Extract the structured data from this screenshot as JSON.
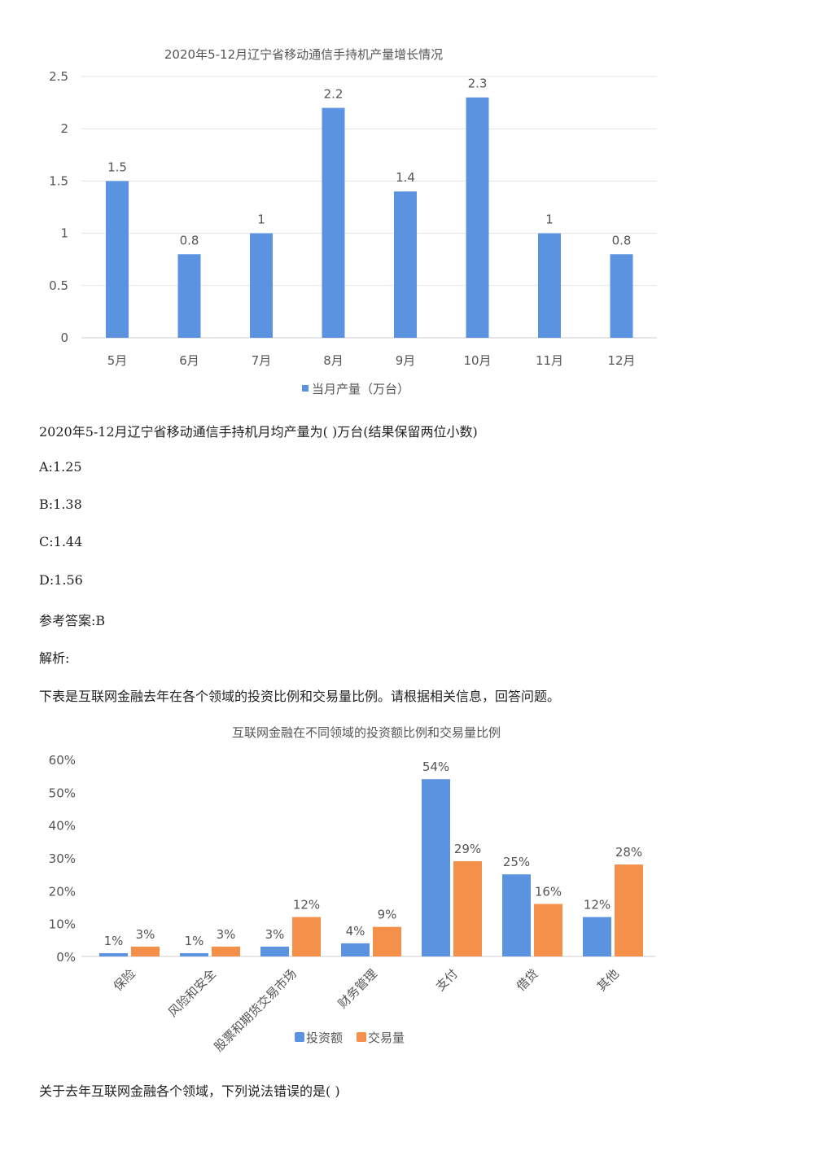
{
  "question1": {
    "text": "2020年5-12月辽宁省移动通信手持机月均产量为( )万台(结果保留两位小数)",
    "options": [
      "A:1.25",
      "B:1.38",
      "C:1.44",
      "D:1.56"
    ],
    "answer": "参考答案:B",
    "analysis": "解析:"
  },
  "intro2": "下表是互联网金融去年在各个领域的投资比例和交易量比例。请根据相关信息，回答问题。",
  "question2": "关于去年互联网金融各个领域，下列说法错误的是( )",
  "colors": {
    "blue": "#5b93e0",
    "orange": "#f4904a",
    "grid": "#e3e3e3"
  },
  "chart_data": [
    {
      "type": "bar",
      "title": "2020年5-12月辽宁省移动通信手持机产量增长情况",
      "categories": [
        "5月",
        "6月",
        "7月",
        "8月",
        "9月",
        "10月",
        "11月",
        "12月"
      ],
      "series": [
        {
          "name": "当月产量（万台）",
          "values": [
            1.5,
            0.8,
            1,
            2.2,
            1.4,
            2.3,
            1,
            0.8
          ]
        }
      ],
      "data_labels": [
        "1.5",
        "0.8",
        "1",
        "2.2",
        "1.4",
        "2.3",
        "1",
        "0.8"
      ],
      "yticks": [
        "0",
        "0.5",
        "1",
        "1.5",
        "2",
        "2.5"
      ],
      "ylim": [
        0,
        2.5
      ],
      "grid": true,
      "legend": "bottom"
    },
    {
      "type": "bar",
      "title": "互联网金融在不同领域的投资额比例和交易量比例",
      "categories": [
        "保险",
        "风险和安全",
        "股票和期货交易市场",
        "财务管理",
        "支付",
        "借贷",
        "其他"
      ],
      "series": [
        {
          "name": "投资额",
          "values": [
            1,
            1,
            3,
            4,
            54,
            25,
            12
          ],
          "labels": [
            "1%",
            "1%",
            "3%",
            "4%",
            "54%",
            "25%",
            "12%"
          ]
        },
        {
          "name": "交易量",
          "values": [
            3,
            3,
            12,
            9,
            29,
            16,
            28
          ],
          "labels": [
            "3%",
            "3%",
            "12%",
            "9%",
            "29%",
            "16%",
            "28%"
          ]
        }
      ],
      "yticks": [
        "0%",
        "10%",
        "20%",
        "30%",
        "40%",
        "50%",
        "60%"
      ],
      "ylim": [
        0,
        60
      ],
      "grid": false,
      "legend": "bottom"
    }
  ]
}
